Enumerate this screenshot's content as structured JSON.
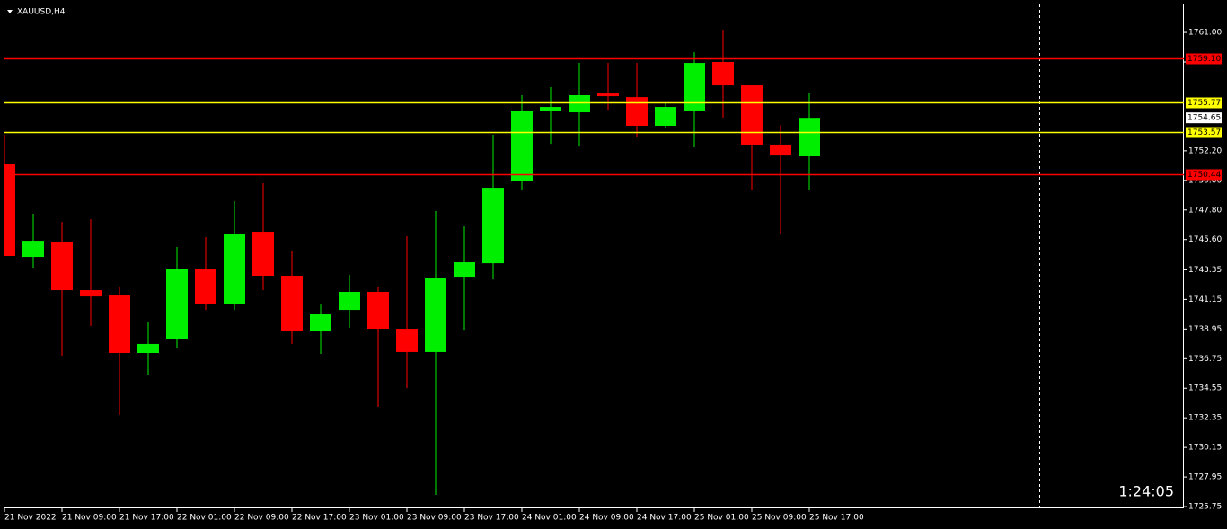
{
  "chart_data": {
    "type": "candlestick",
    "title": "XAUUSD,H4",
    "countdown": "1:24:05",
    "categories": [
      "21 Nov 2022",
      null,
      "21 Nov 09:00",
      null,
      "21 Nov 17:00",
      null,
      "22 Nov 01:00",
      null,
      "22 Nov 09:00",
      null,
      "22 Nov 17:00",
      null,
      "23 Nov 01:00",
      null,
      "23 Nov 09:00",
      null,
      "23 Nov 17:00",
      null,
      "24 Nov 01:00",
      null,
      "24 Nov 09:00",
      null,
      "24 Nov 17:00",
      null,
      "25 Nov 01:00",
      null,
      "25 Nov 09:00",
      null,
      "25 Nov 17:00"
    ],
    "open": [
      1751.19,
      1744.31,
      1745.45,
      1741.84,
      1741.44,
      1737.17,
      1738.17,
      1743.44,
      1740.84,
      1746.18,
      1742.91,
      1738.77,
      1740.37,
      1741.71,
      1738.97,
      1737.24,
      1742.84,
      1743.84,
      1749.92,
      1755.13,
      1755.06,
      1756.46,
      1756.19,
      1754.06,
      1755.13,
      1758.8,
      1757.06,
      1752.66,
      1751.79
    ],
    "high": [
      1753.39,
      1747.52,
      1746.91,
      1747.11,
      1742.04,
      1739.44,
      1745.05,
      1745.78,
      1748.45,
      1749.79,
      1744.71,
      1740.77,
      1742.98,
      1742.04,
      1745.85,
      1747.72,
      1746.58,
      1753.39,
      1756.33,
      1756.93,
      1758.73,
      1758.73,
      1758.73,
      1755.73,
      1759.53,
      1761.2,
      1757.06,
      1754.12,
      1756.46
    ],
    "low": [
      1744.38,
      1743.51,
      1736.97,
      1739.17,
      1732.56,
      1735.5,
      1737.5,
      1740.37,
      1740.37,
      1741.84,
      1737.84,
      1737.1,
      1739.04,
      1733.16,
      1734.56,
      1726.62,
      1738.9,
      1742.64,
      1749.25,
      1752.72,
      1752.52,
      1755.19,
      1753.26,
      1753.92,
      1752.46,
      1754.66,
      1749.32,
      1745.98,
      1749.32
    ],
    "close": [
      1744.38,
      1745.51,
      1741.84,
      1741.37,
      1737.17,
      1737.84,
      1743.44,
      1740.84,
      1746.05,
      1742.91,
      1738.77,
      1740.04,
      1741.71,
      1738.97,
      1737.24,
      1742.71,
      1743.91,
      1749.45,
      1755.13,
      1755.46,
      1756.33,
      1756.26,
      1754.06,
      1755.46,
      1758.73,
      1757.06,
      1752.66,
      1751.85,
      1754.65
    ],
    "up_color": "#00ee00",
    "down_color": "#ff0000",
    "levels": [
      {
        "value": 1759.1,
        "label": "1759.10",
        "color": "#ff0000"
      },
      {
        "value": 1755.77,
        "label": "1755.77",
        "color": "#ffff00"
      },
      {
        "value": 1753.57,
        "label": "1753.57",
        "color": "#ffff00"
      },
      {
        "value": 1750.44,
        "label": "1750.44",
        "color": "#ff0000"
      }
    ],
    "current_price": {
      "value": 1754.65,
      "label": "1754.65"
    },
    "ylim": [
      1725.62,
      1763.14
    ],
    "yticks": [
      {
        "value": 1761,
        "label": "1761.00"
      },
      {
        "value": 1758.8,
        "label": "1758.80"
      },
      {
        "value": 1752.2,
        "label": "1752.20"
      },
      {
        "value": 1750,
        "label": "1750.00"
      },
      {
        "value": 1747.8,
        "label": "1747.80"
      },
      {
        "value": 1745.6,
        "label": "1745.60"
      },
      1743.35,
      1741.15,
      1738.95,
      1736.75,
      1734.55,
      1732.35,
      1730.15,
      1727.95,
      1725.75
    ]
  }
}
